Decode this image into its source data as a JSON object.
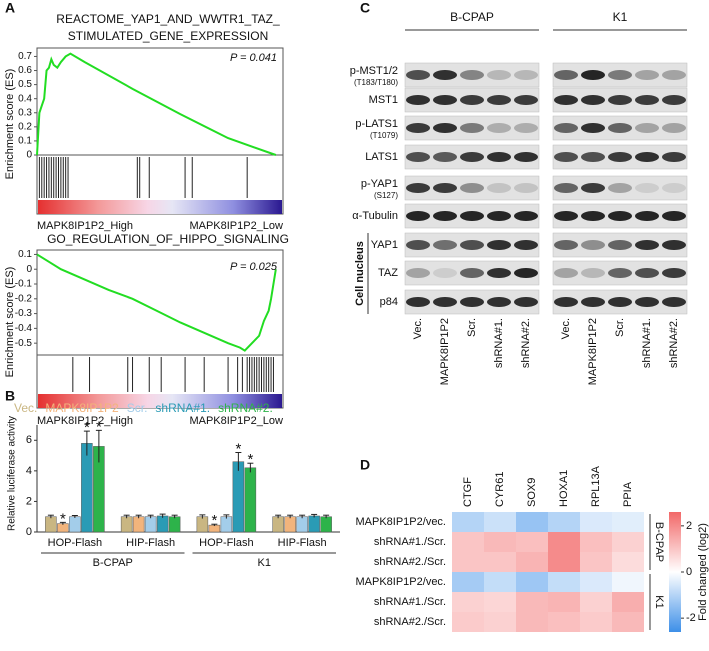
{
  "panel_labels": [
    "A",
    "B",
    "C",
    "D"
  ],
  "chart_data": [
    {
      "type": "gsea",
      "title": [
        "REACTOME_YAP1_AND_WWTR1_TAZ_",
        "STIMULATED_GENE_EXPRESSION"
      ],
      "y_label": "Enrichment score (ES)",
      "annotation": "P = 0.041",
      "color": "#22dd22",
      "x": [
        0,
        0.5,
        1,
        2,
        3,
        4,
        5,
        6,
        7,
        8.5,
        10,
        12,
        14,
        20,
        40,
        60,
        80,
        100
      ],
      "values": [
        0,
        0.15,
        0.3,
        0.35,
        0.4,
        0.6,
        0.62,
        0.68,
        0.64,
        0.62,
        0.66,
        0.7,
        0.72,
        0.66,
        0.47,
        0.29,
        0.12,
        0
      ],
      "xlim": [
        0,
        103
      ],
      "ylim": [
        0,
        0.76
      ],
      "yticks": [
        0,
        0.1,
        0.2,
        0.3,
        0.4,
        0.5,
        0.6,
        0.7
      ],
      "hits": [
        1,
        2,
        3,
        4,
        5,
        6,
        7,
        8,
        9,
        10,
        11,
        12,
        13,
        42,
        43,
        47,
        62,
        65,
        88
      ],
      "rank_labels": [
        "MAPK8IP1P2_High",
        "MAPK8IP1P2_Low"
      ]
    },
    {
      "type": "gsea",
      "title": [
        "GO_REGULATION_OF_HIPPO_SIGNALING"
      ],
      "y_label": "Enrichment score (ES)",
      "annotation": "P = 0.025",
      "color": "#22dd22",
      "x": [
        0,
        5,
        10,
        20,
        30,
        40,
        50,
        60,
        70,
        80,
        85,
        87,
        90,
        93,
        95,
        97,
        98,
        99,
        100
      ],
      "values": [
        0.1,
        0.05,
        0,
        -0.07,
        -0.14,
        -0.2,
        -0.28,
        -0.36,
        -0.43,
        -0.5,
        -0.53,
        -0.55,
        -0.5,
        -0.45,
        -0.35,
        -0.28,
        -0.2,
        -0.1,
        0
      ],
      "xlim": [
        0,
        103
      ],
      "ylim": [
        -0.58,
        0.13
      ],
      "yticks": [
        0.1,
        0,
        -0.1,
        -0.2,
        -0.3,
        -0.4,
        -0.5
      ],
      "hits": [
        15,
        22,
        38,
        40,
        47,
        52,
        62,
        70,
        80,
        84,
        86,
        88,
        89,
        90,
        91,
        92,
        93,
        94,
        95,
        96,
        97,
        98,
        99
      ],
      "rank_labels": [
        "MAPK8IP1P2_High",
        "MAPK8IP1P2_Low"
      ]
    },
    {
      "type": "bar",
      "y_label": "Relative luciferase activity",
      "categories": [
        "HOP-Flash",
        "HIP-Flash",
        "HOP-Flash",
        "HIP-Flash"
      ],
      "group_labels": [
        "B-CPAP",
        "K1"
      ],
      "ylim": [
        0,
        7
      ],
      "yticks": [
        0,
        2,
        4,
        6
      ],
      "series": [
        {
          "name": "Vec.",
          "color": "#c9b682",
          "values": [
            1,
            1,
            1,
            1
          ],
          "errors": [
            0.1,
            0.1,
            0.12,
            0.1
          ]
        },
        {
          "name": "MAPK8IP1P2",
          "color": "#f2b47c",
          "values": [
            0.55,
            1,
            0.45,
            1
          ],
          "errors": [
            0.08,
            0.1,
            0.06,
            0.1
          ],
          "stars": [
            "*",
            null,
            "*",
            null
          ]
        },
        {
          "name": "Scr.",
          "color": "#a3cdea",
          "values": [
            1,
            1,
            1,
            1
          ],
          "errors": [
            0.08,
            0.1,
            0.12,
            0.1
          ]
        },
        {
          "name": "shRNA#1.",
          "color": "#2a9bb5",
          "values": [
            5.8,
            1.05,
            4.6,
            1.05
          ],
          "errors": [
            0.8,
            0.12,
            0.6,
            0.1
          ],
          "stars": [
            "*",
            null,
            "*",
            null
          ]
        },
        {
          "name": "shRNA#2.",
          "color": "#2db34a",
          "values": [
            5.6,
            1,
            4.2,
            1
          ],
          "errors": [
            1.05,
            0.1,
            0.3,
            0.1
          ],
          "stars": [
            "*",
            null,
            "*",
            null
          ]
        }
      ]
    },
    {
      "type": "heatmap",
      "columns": [
        "CTGF",
        "CYR61",
        "SOX9",
        "HOXA1",
        "RPL13A",
        "PPIA"
      ],
      "rows": [
        "MAPK8IP1P2/vec.",
        "shRNA#1./Scr.",
        "shRNA#2./Scr.",
        "MAPK8IP1P2/vec.",
        "shRNA#1./Scr.",
        "shRNA#2./Scr."
      ],
      "group_labels": [
        "B-CPAP",
        "K1"
      ],
      "values": [
        [
          -1,
          -0.7,
          -1.4,
          -1,
          -0.5,
          -0.4
        ],
        [
          1,
          1.2,
          1.1,
          2,
          1.1,
          0.8
        ],
        [
          1,
          1,
          1.3,
          2,
          1,
          0.6
        ],
        [
          -1.2,
          -0.8,
          -1.3,
          -0.8,
          -0.5,
          -0.2
        ],
        [
          0.8,
          0.7,
          1.2,
          1.3,
          0.8,
          1.4
        ],
        [
          0.9,
          0.8,
          1.2,
          1.1,
          0.9,
          1.2
        ]
      ],
      "clim": [
        -2.6,
        2.6
      ],
      "colorbar_ticks": [
        2,
        0,
        -2
      ],
      "colorbar_label": "Fold changed (log2)",
      "colors": [
        "#3d8fe8",
        "#ffffff",
        "#f26868"
      ]
    }
  ],
  "blot": {
    "groups": [
      {
        "name": "B-CPAP",
        "lanes": [
          "Vec.",
          "MAPK8IP1P2",
          "Scr.",
          "shRNA#1.",
          "shRNA#2."
        ]
      },
      {
        "name": "K1",
        "lanes": [
          "Vec.",
          "MAPK8IP1P2",
          "Scr.",
          "shRNA#1.",
          "shRNA#2."
        ]
      }
    ],
    "nucleus_label": "Cell nucleus",
    "rows": [
      {
        "label": "p-MST1/2",
        "sublabel": "(T183/T180)",
        "intensity": [
          0.7,
          0.85,
          0.45,
          0.2,
          0.2,
          0.6,
          0.9,
          0.5,
          0.3,
          0.3
        ]
      },
      {
        "label": "MST1",
        "intensity": [
          0.85,
          0.85,
          0.8,
          0.8,
          0.8,
          0.85,
          0.85,
          0.8,
          0.8,
          0.8
        ]
      },
      {
        "label": "p-LATS1",
        "sublabel": "(T1079)",
        "intensity": [
          0.8,
          0.85,
          0.5,
          0.25,
          0.25,
          0.6,
          0.85,
          0.6,
          0.3,
          0.3
        ]
      },
      {
        "label": "LATS1",
        "intensity": [
          0.7,
          0.65,
          0.8,
          0.85,
          0.85,
          0.7,
          0.7,
          0.8,
          0.85,
          0.8
        ]
      },
      {
        "label": "p-YAP1",
        "sublabel": "(S127)",
        "intensity": [
          0.8,
          0.8,
          0.4,
          0.15,
          0.15,
          0.6,
          0.8,
          0.3,
          0.1,
          0.1
        ]
      },
      {
        "label": "α-Tubulin",
        "intensity": [
          0.9,
          0.9,
          0.9,
          0.9,
          0.9,
          0.9,
          0.9,
          0.9,
          0.9,
          0.9
        ]
      },
      {
        "label": "YAP1",
        "nucleus": true,
        "intensity": [
          0.7,
          0.55,
          0.7,
          0.85,
          0.85,
          0.6,
          0.4,
          0.6,
          0.85,
          0.85
        ]
      },
      {
        "label": "TAZ",
        "nucleus": true,
        "intensity": [
          0.3,
          0.1,
          0.6,
          0.85,
          0.9,
          0.3,
          0.2,
          0.6,
          0.7,
          0.8
        ]
      },
      {
        "label": "p84",
        "nucleus": true,
        "intensity": [
          0.85,
          0.85,
          0.85,
          0.85,
          0.85,
          0.85,
          0.85,
          0.85,
          0.85,
          0.85
        ]
      }
    ]
  }
}
